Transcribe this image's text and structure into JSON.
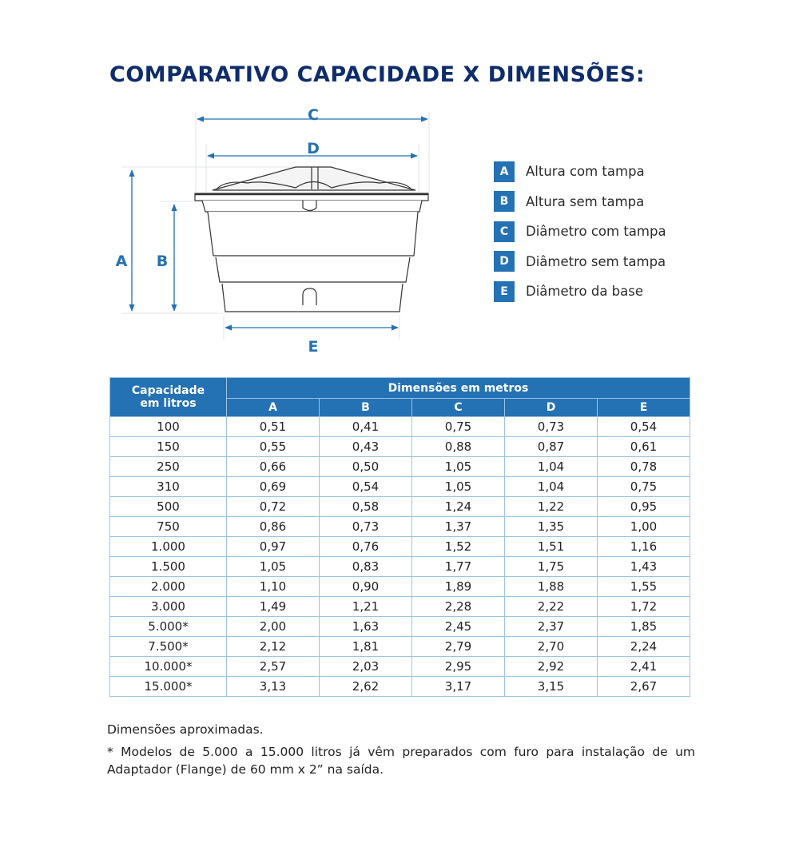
{
  "title": "COMPARATIVO CAPACIDADE X DIMENSÕES:",
  "diagram": {
    "labels": {
      "a": "A",
      "b": "B",
      "c": "C",
      "d": "D",
      "e": "E"
    }
  },
  "legend": [
    {
      "key": "A",
      "text": "Altura com tampa"
    },
    {
      "key": "B",
      "text": "Altura sem tampa"
    },
    {
      "key": "C",
      "text": "Diâmetro com tampa"
    },
    {
      "key": "D",
      "text": "Diâmetro sem tampa"
    },
    {
      "key": "E",
      "text": "Diâmetro da base"
    }
  ],
  "table": {
    "capacity_header": "Capacidade em litros",
    "group_header": "Dimensões em metros",
    "columns": [
      "A",
      "B",
      "C",
      "D",
      "E"
    ],
    "rows": [
      [
        "100",
        "0,51",
        "0,41",
        "0,75",
        "0,73",
        "0,54"
      ],
      [
        "150",
        "0,55",
        "0,43",
        "0,88",
        "0,87",
        "0,61"
      ],
      [
        "250",
        "0,66",
        "0,50",
        "1,05",
        "1,04",
        "0,78"
      ],
      [
        "310",
        "0,69",
        "0,54",
        "1,05",
        "1,04",
        "0,75"
      ],
      [
        "500",
        "0,72",
        "0,58",
        "1,24",
        "1,22",
        "0,95"
      ],
      [
        "750",
        "0,86",
        "0,73",
        "1,37",
        "1,35",
        "1,00"
      ],
      [
        "1.000",
        "0,97",
        "0,76",
        "1,52",
        "1,51",
        "1,16"
      ],
      [
        "1.500",
        "1,05",
        "0,83",
        "1,77",
        "1,75",
        "1,43"
      ],
      [
        "2.000",
        "1,10",
        "0,90",
        "1,89",
        "1,88",
        "1,55"
      ],
      [
        "3.000",
        "1,49",
        "1,21",
        "2,28",
        "2,22",
        "1,72"
      ],
      [
        "5.000*",
        "2,00",
        "1,63",
        "2,45",
        "2,37",
        "1,85"
      ],
      [
        "7.500*",
        "2,12",
        "1,81",
        "2,79",
        "2,70",
        "2,24"
      ],
      [
        "10.000*",
        "2,57",
        "2,03",
        "2,95",
        "2,92",
        "2,41"
      ],
      [
        "15.000*",
        "3,13",
        "2,62",
        "3,17",
        "3,15",
        "2,67"
      ]
    ]
  },
  "notes": {
    "approx": "Dimensões aproximadas.",
    "footnote": "* Modelos de 5.000 a 15.000 litros já vêm preparados com furo para instalação de um Adaptador (Flange) de 60 mm x 2” na saída."
  },
  "colors": {
    "title": "#0e2d6a",
    "accent": "#2471b3",
    "border": "#9cc3e0"
  }
}
